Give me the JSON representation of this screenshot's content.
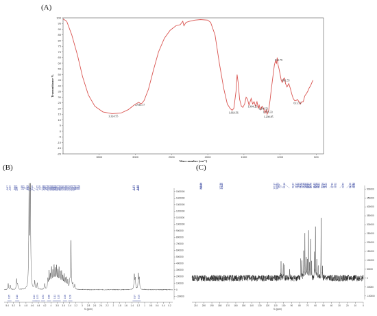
{
  "panels": {
    "a": "(A)",
    "b": "(B)",
    "c": "(C)"
  },
  "chart_data": [
    {
      "panel": "(A)",
      "type": "line",
      "xlabel": "Wave number (cm⁻¹)",
      "ylabel": "Transmittance %",
      "xlim": [
        4000,
        400
      ],
      "ylim": [
        -20,
        100
      ],
      "x_ticks": [
        3500,
        3000,
        2500,
        2000,
        1500,
        1000,
        500
      ],
      "y_ticks": [
        100,
        95,
        90,
        85,
        80,
        75,
        70,
        65,
        60,
        55,
        50,
        45,
        40,
        35,
        30,
        25,
        20,
        15,
        10,
        5,
        0,
        -5,
        -10,
        -15,
        -20
      ],
      "line_color": "#d9534f",
      "points": [
        [
          4000,
          99
        ],
        [
          3950,
          97
        ],
        [
          3880,
          85
        ],
        [
          3800,
          67
        ],
        [
          3730,
          48
        ],
        [
          3650,
          32
        ],
        [
          3560,
          22
        ],
        [
          3450,
          17
        ],
        [
          3324,
          15.5
        ],
        [
          3200,
          16
        ],
        [
          3100,
          19
        ],
        [
          3020,
          23
        ],
        [
          2955,
          25.5
        ],
        [
          2920,
          24
        ],
        [
          2880,
          27
        ],
        [
          2820,
          37
        ],
        [
          2750,
          54
        ],
        [
          2680,
          70
        ],
        [
          2600,
          82
        ],
        [
          2520,
          89
        ],
        [
          2440,
          93
        ],
        [
          2380,
          94
        ],
        [
          2345,
          97
        ],
        [
          2330,
          93
        ],
        [
          2300,
          96
        ],
        [
          2250,
          97
        ],
        [
          2180,
          98
        ],
        [
          2100,
          98.5
        ],
        [
          2000,
          98
        ],
        [
          1960,
          96
        ],
        [
          1900,
          85
        ],
        [
          1840,
          60
        ],
        [
          1780,
          38
        ],
        [
          1730,
          24
        ],
        [
          1690,
          20
        ],
        [
          1664,
          18.5
        ],
        [
          1640,
          20
        ],
        [
          1610,
          35
        ],
        [
          1595,
          50
        ],
        [
          1580,
          43
        ],
        [
          1560,
          28
        ],
        [
          1535,
          22
        ],
        [
          1515,
          21
        ],
        [
          1490,
          24
        ],
        [
          1470,
          30
        ],
        [
          1450,
          28
        ],
        [
          1430,
          23
        ],
        [
          1400,
          29
        ],
        [
          1380,
          24
        ],
        [
          1360,
          26
        ],
        [
          1340,
          22
        ],
        [
          1320,
          26
        ],
        [
          1300,
          20
        ],
        [
          1290,
          23
        ],
        [
          1270,
          19
        ],
        [
          1250,
          22
        ],
        [
          1230,
          20
        ],
        [
          1210,
          16
        ],
        [
          1190,
          19
        ],
        [
          1180,
          15
        ],
        [
          1160,
          18
        ],
        [
          1140,
          27
        ],
        [
          1120,
          38
        ],
        [
          1100,
          48
        ],
        [
          1080,
          58
        ],
        [
          1065,
          62
        ],
        [
          1050,
          60
        ],
        [
          1040,
          65
        ],
        [
          1030,
          59
        ],
        [
          1015,
          55
        ],
        [
          1000,
          50
        ],
        [
          985,
          45
        ],
        [
          970,
          43
        ],
        [
          955,
          46
        ],
        [
          940,
          47
        ],
        [
          925,
          42
        ],
        [
          905,
          39
        ],
        [
          880,
          42
        ],
        [
          860,
          38
        ],
        [
          840,
          33
        ],
        [
          820,
          29
        ],
        [
          800,
          27
        ],
        [
          780,
          27
        ],
        [
          760,
          28
        ],
        [
          740,
          26
        ],
        [
          720,
          24
        ],
        [
          700,
          26
        ],
        [
          680,
          26
        ],
        [
          660,
          31
        ],
        [
          640,
          33
        ],
        [
          620,
          35
        ],
        [
          600,
          38
        ],
        [
          580,
          40
        ],
        [
          560,
          43
        ],
        [
          545,
          45
        ]
      ],
      "annotations": [
        {
          "text": "3,324.55",
          "x": 3324,
          "y": 15.5
        },
        {
          "text": "2,933.17",
          "x": 2955,
          "y": 25.5
        },
        {
          "text": "1,664.56",
          "x": 1664,
          "y": 18.5
        },
        {
          "text": "1,404.23",
          "x": 1400,
          "y": 24
        },
        {
          "text": "1,249.51",
          "x": 1250,
          "y": 22
        },
        {
          "text": "1,076.33",
          "x": 1190,
          "y": 19
        },
        {
          "text": "1,200.85",
          "x": 1180,
          "y": 15
        },
        {
          "text": "812.79",
          "x": 1040,
          "y": 65
        },
        {
          "text": "891.55",
          "x": 940,
          "y": 47
        },
        {
          "text": "613.51",
          "x": 780,
          "y": 27
        }
      ]
    },
    {
      "panel": "(B)",
      "type": "line",
      "xlabel": "f1 (ppm)",
      "xlim": [
        5.5,
        0.1
      ],
      "x_ticks": [
        5.4,
        5.2,
        5.0,
        4.8,
        4.6,
        4.4,
        4.2,
        4.0,
        3.8,
        3.6,
        3.4,
        3.2,
        3.0,
        2.8,
        2.6,
        2.4,
        2.2,
        2.0,
        1.8,
        1.6,
        1.4,
        1.2,
        1.0,
        0.8,
        0.6,
        0.4,
        0.2
      ],
      "y_ticks": [
        1500000,
        1400000,
        1300000,
        1200000,
        1100000,
        1000000,
        900000,
        800000,
        700000,
        600000,
        500000,
        400000,
        300000,
        200000,
        100000,
        0,
        -100000
      ],
      "ylim": [
        -150000,
        1550000
      ],
      "peaks": [
        {
          "ppm": 5.37,
          "height": 90000
        },
        {
          "ppm": 5.3,
          "height": 60000
        },
        {
          "ppm": 5.1,
          "height": 160000
        },
        {
          "ppm": 5.07,
          "height": 80000
        },
        {
          "ppm": 4.7,
          "height": 1600000
        },
        {
          "ppm": 4.66,
          "height": 1500000
        },
        {
          "ppm": 4.52,
          "height": 120000
        },
        {
          "ppm": 4.44,
          "height": 90000
        },
        {
          "ppm": 4.2,
          "height": 90000
        },
        {
          "ppm": 4.1,
          "height": 150000
        },
        {
          "ppm": 4.06,
          "height": 260000
        },
        {
          "ppm": 4.02,
          "height": 200000
        },
        {
          "ppm": 3.98,
          "height": 300000
        },
        {
          "ppm": 3.94,
          "height": 240000
        },
        {
          "ppm": 3.9,
          "height": 330000
        },
        {
          "ppm": 3.86,
          "height": 270000
        },
        {
          "ppm": 3.82,
          "height": 310000
        },
        {
          "ppm": 3.78,
          "height": 250000
        },
        {
          "ppm": 3.74,
          "height": 290000
        },
        {
          "ppm": 3.7,
          "height": 220000
        },
        {
          "ppm": 3.66,
          "height": 240000
        },
        {
          "ppm": 3.62,
          "height": 180000
        },
        {
          "ppm": 3.58,
          "height": 200000
        },
        {
          "ppm": 3.54,
          "height": 150000
        },
        {
          "ppm": 3.5,
          "height": 160000
        },
        {
          "ppm": 3.46,
          "height": 120000
        },
        {
          "ppm": 3.4,
          "height": 100000
        },
        {
          "ppm": 3.36,
          "height": 760000
        },
        {
          "ppm": 3.3,
          "height": 80000
        },
        {
          "ppm": 3.24,
          "height": 70000
        },
        {
          "ppm": 1.33,
          "height": 220000
        },
        {
          "ppm": 1.3,
          "height": 160000
        },
        {
          "ppm": 1.2,
          "height": 230000
        },
        {
          "ppm": 1.17,
          "height": 170000
        }
      ],
      "peak_labels_left": [
        "5.37",
        "5.29",
        "5.14",
        "5.10",
        "5.07"
      ],
      "peak_labels_mid": [
        "4.68",
        "4.63",
        "4.53",
        "4.52",
        "4.40",
        "4.25",
        "4.18",
        "4.09",
        "4.08",
        "4.05",
        "4.01",
        "3.98",
        "3.95",
        "3.92",
        "3.90",
        "3.87",
        "3.85",
        "3.82",
        "3.80",
        "3.77",
        "3.74",
        "3.72",
        "3.69",
        "3.66",
        "3.62",
        "3.58",
        "3.55",
        "3.52",
        "3.48",
        "3.44",
        "3.41",
        "3.37",
        "3.35",
        "3.31",
        "3.28"
      ],
      "peak_labels_right": [
        "1.33",
        "1.31",
        "1.21",
        "1.19",
        "1.18"
      ],
      "integrals": [
        {
          "ppm": 5.33,
          "text": "0.25"
        },
        {
          "ppm": 5.08,
          "text": "0.16"
        },
        {
          "ppm": 4.53,
          "text": "0.49"
        },
        {
          "ppm": 4.42,
          "text": "0.73"
        },
        {
          "ppm": 4.25,
          "text": "0.34"
        },
        {
          "ppm": 4.06,
          "text": "0.86"
        },
        {
          "ppm": 3.88,
          "text": "1.11"
        },
        {
          "ppm": 3.75,
          "text": "1.20"
        },
        {
          "ppm": 3.55,
          "text": "0.96"
        },
        {
          "ppm": 3.38,
          "text": "1.00"
        },
        {
          "ppm": 1.32,
          "text": "0.97"
        },
        {
          "ppm": 1.19,
          "text": "1.01"
        }
      ]
    },
    {
      "panel": "(C)",
      "type": "line",
      "xlabel": "f1 (ppm)",
      "xlim": [
        215,
        0
      ],
      "x_ticks": [
        210,
        200,
        190,
        180,
        170,
        160,
        150,
        140,
        130,
        120,
        110,
        100,
        90,
        80,
        70,
        60,
        50,
        40,
        30,
        20,
        10,
        0
      ],
      "y_ticks": [
        500000,
        450000,
        400000,
        350000,
        300000,
        250000,
        200000,
        150000,
        100000,
        50000,
        0,
        -50000,
        -100000
      ],
      "ylim": [
        -120000,
        520000
      ],
      "noise_level": 18000,
      "peaks": [
        {
          "ppm": 103.2,
          "height": 90000
        },
        {
          "ppm": 100.5,
          "height": 80000
        },
        {
          "ppm": 99.1,
          "height": 70000
        },
        {
          "ppm": 92.4,
          "height": 45000
        },
        {
          "ppm": 78.4,
          "height": 110000
        },
        {
          "ppm": 76.9,
          "height": 90000
        },
        {
          "ppm": 74.8,
          "height": 150000
        },
        {
          "ppm": 73.3,
          "height": 270000
        },
        {
          "ppm": 71.5,
          "height": 120000
        },
        {
          "ppm": 70.2,
          "height": 100000
        },
        {
          "ppm": 68.7,
          "height": 270000
        },
        {
          "ppm": 67.4,
          "height": 90000
        },
        {
          "ppm": 66.1,
          "height": 240000
        },
        {
          "ppm": 64.8,
          "height": 80000
        },
        {
          "ppm": 61.3,
          "height": 160000
        },
        {
          "ppm": 60.0,
          "height": 300000
        },
        {
          "ppm": 58.4,
          "height": 100000
        },
        {
          "ppm": 56.6,
          "height": 80000
        },
        {
          "ppm": 53.0,
          "height": 330000
        },
        {
          "ppm": 51.2,
          "height": 60000
        }
      ],
      "peak_labels_left": [
        "203.01",
        "202.38"
      ],
      "peak_labels_mid": [
        "177.86",
        "176.20"
      ],
      "peak_labels_right": [
        "103.17",
        "100.51",
        "99.07",
        "92.38",
        "82.24",
        "78.37",
        "76.92",
        "74.77",
        "73.28",
        "71.48",
        "70.22",
        "68.65",
        "67.37",
        "66.07",
        "64.78",
        "61.31",
        "60.02",
        "58.43",
        "56.61",
        "53.04",
        "51.17",
        "48.99",
        "42.19",
        "38.62",
        "29.63",
        "21.08",
        "18.11",
        "16.88"
      ]
    }
  ]
}
